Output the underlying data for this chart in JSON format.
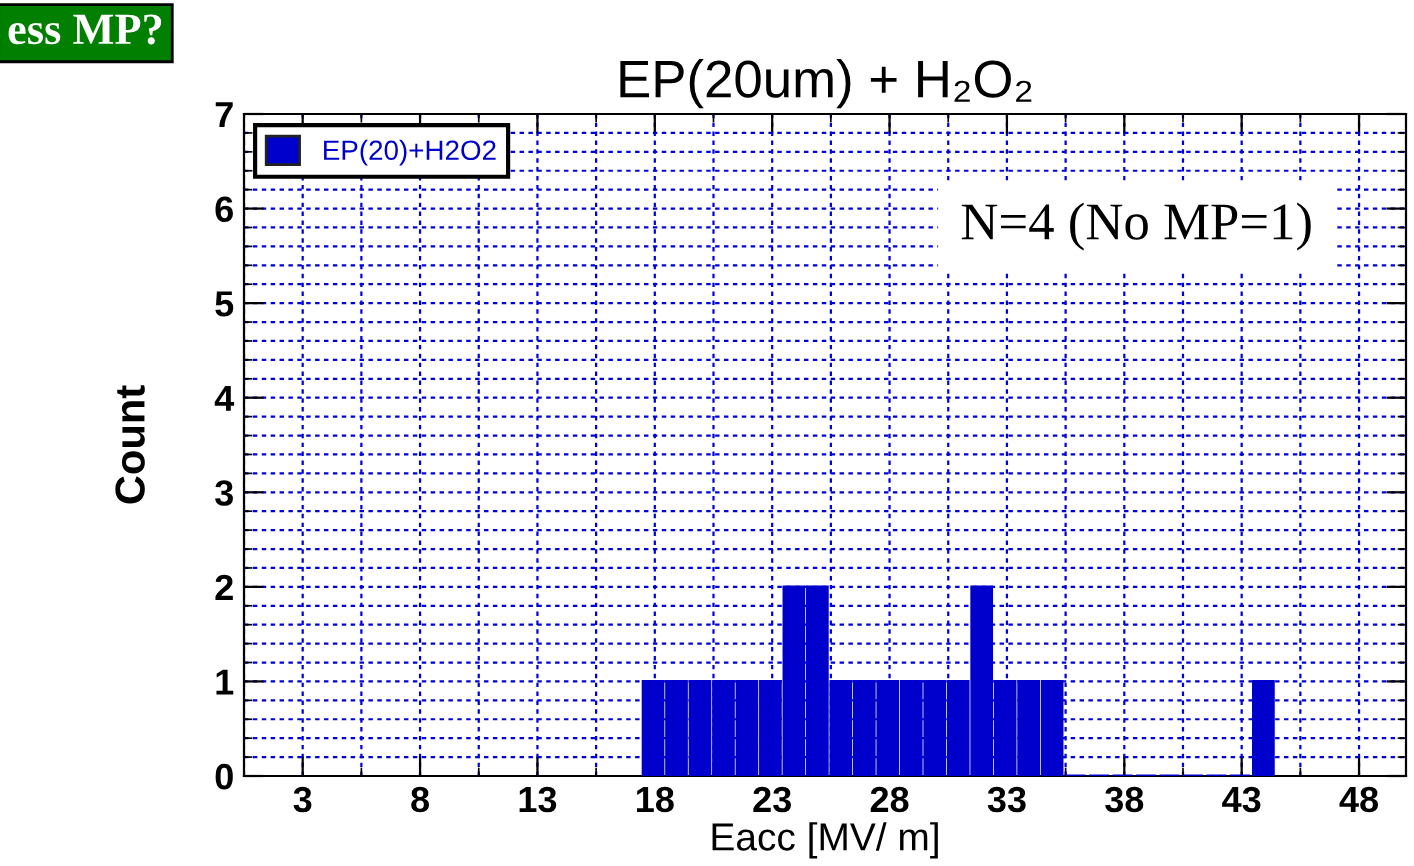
{
  "chart_data": {
    "type": "histogram",
    "title": "EP(20um) + H₂O₂",
    "xlabel": "Eacc [MV/ m]",
    "ylabel": "Count",
    "bins": [
      17.5,
      18.5,
      19.5,
      20.5,
      21.5,
      22.5,
      23.5,
      24.5,
      25.5,
      26.5,
      27.5,
      28.5,
      29.5,
      30.5,
      31.5,
      32.5,
      33.5,
      34.5,
      35.5,
      36.5,
      37.5,
      38.5,
      39.5,
      40.5,
      41.5,
      42.5,
      43.5,
      44.5
    ],
    "series": [
      {
        "name": "EP(20)+H2O2",
        "color": "#0000cc",
        "values": [
          1,
          1,
          1,
          1,
          1,
          1,
          2,
          2,
          1,
          1,
          1,
          1,
          1,
          1,
          2,
          1,
          1,
          1,
          0,
          0,
          0,
          0,
          0,
          0,
          0,
          0,
          1
        ]
      }
    ],
    "xlim": [
      0.5,
      50
    ],
    "ylim": [
      0,
      7
    ],
    "xticks": [
      3,
      8,
      13,
      18,
      23,
      28,
      33,
      38,
      43,
      48
    ],
    "yticks": [
      0,
      1,
      2,
      3,
      4,
      5,
      6,
      7
    ],
    "annotations": [
      "N=4 (No MP=1)",
      "ess MP?"
    ],
    "grid": true,
    "legend": "top left"
  }
}
